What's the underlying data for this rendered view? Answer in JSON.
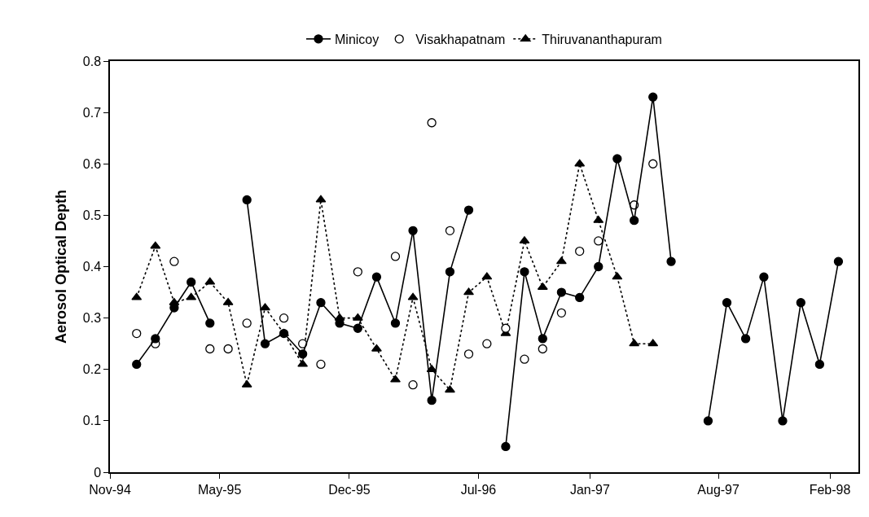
{
  "chart_data": {
    "type": "line",
    "ylabel": "Aerosol Optical Depth",
    "x": [
      "1994-12-15",
      "1995-01-15",
      "1995-02-15",
      "1995-03-15",
      "1995-04-15",
      "1995-05-15",
      "1995-06-15",
      "1995-07-15",
      "1995-08-15",
      "1995-09-15",
      "1995-10-15",
      "1995-11-15",
      "1995-12-15",
      "1996-01-15",
      "1996-02-15",
      "1996-03-15",
      "1996-04-15",
      "1996-05-15",
      "1996-06-15",
      "1996-07-15",
      "1996-08-15",
      "1996-09-15",
      "1996-10-15",
      "1996-11-15",
      "1996-12-15",
      "1997-01-15",
      "1997-02-15",
      "1997-03-15",
      "1997-04-15",
      "1997-05-15",
      "1997-06-15",
      "1997-07-15",
      "1997-08-15",
      "1997-09-15",
      "1997-10-15",
      "1997-11-15",
      "1997-12-15",
      "1998-01-15",
      "1998-02-15"
    ],
    "series": [
      {
        "name": "Minicoy",
        "color": "#000000",
        "marker": "circle",
        "line_style": "solid",
        "values": [
          0.21,
          0.26,
          0.32,
          0.37,
          0.29,
          null,
          0.53,
          0.25,
          0.27,
          0.23,
          0.33,
          0.29,
          0.28,
          0.38,
          0.29,
          0.47,
          0.14,
          0.39,
          0.51,
          null,
          0.05,
          0.39,
          0.26,
          0.35,
          0.34,
          0.4,
          0.61,
          0.49,
          0.73,
          0.41,
          null,
          0.1,
          0.33,
          0.26,
          0.38,
          0.1,
          0.33,
          0.21,
          0.41
        ]
      },
      {
        "name": "Visakhapatnam",
        "type": "scatter",
        "color": "#000000",
        "marker": "circle",
        "values": [
          0.27,
          0.25,
          0.41,
          null,
          0.24,
          0.24,
          0.29,
          null,
          0.3,
          0.25,
          0.21,
          null,
          0.39,
          null,
          0.42,
          0.17,
          0.68,
          0.47,
          0.23,
          0.25,
          0.28,
          0.22,
          0.24,
          0.31,
          0.43,
          0.45,
          null,
          0.52,
          0.6,
          null,
          null,
          null,
          null,
          null,
          null,
          null,
          null,
          null,
          null
        ]
      },
      {
        "name": "Thiruvananthapuram",
        "color": "#000000",
        "marker": "triangle",
        "line_style": "dotted",
        "values": [
          0.34,
          0.44,
          0.33,
          0.34,
          0.37,
          0.33,
          0.17,
          0.32,
          0.27,
          0.21,
          0.53,
          0.3,
          0.3,
          0.24,
          0.18,
          0.34,
          0.2,
          0.16,
          0.35,
          0.38,
          0.27,
          0.45,
          0.36,
          0.41,
          0.6,
          0.49,
          0.38,
          0.25,
          0.25,
          null,
          null,
          null,
          null,
          null,
          null,
          null,
          null,
          null,
          null
        ]
      }
    ],
    "xlim": [
      "1994-11-01",
      "1998-03-20"
    ],
    "xticks": [
      {
        "value": "1994-11-01",
        "label": "Nov-94"
      },
      {
        "value": "1995-05-01",
        "label": "May-95"
      },
      {
        "value": "1995-12-01",
        "label": "Dec-95"
      },
      {
        "value": "1996-07-01",
        "label": "Jul-96"
      },
      {
        "value": "1997-01-01",
        "label": "Jan-97"
      },
      {
        "value": "1997-08-01",
        "label": "Aug-97"
      },
      {
        "value": "1998-02-01",
        "label": "Feb-98"
      }
    ],
    "ylim": [
      0,
      0.8
    ],
    "yticks": [
      0,
      {
        "value": 0.1,
        "label": "0.1"
      },
      {
        "value": 0.2,
        "label": "0.2"
      },
      {
        "value": 0.3,
        "label": "0.3"
      },
      {
        "value": 0.4,
        "label": "0.4"
      },
      {
        "value": 0.5,
        "label": "0.5"
      },
      {
        "value": 0.6,
        "label": "0.6"
      },
      {
        "value": 0.7,
        "label": "0.7"
      },
      {
        "value": 0.8,
        "label": "0.8"
      }
    ],
    "grid": false,
    "legend": "top"
  }
}
